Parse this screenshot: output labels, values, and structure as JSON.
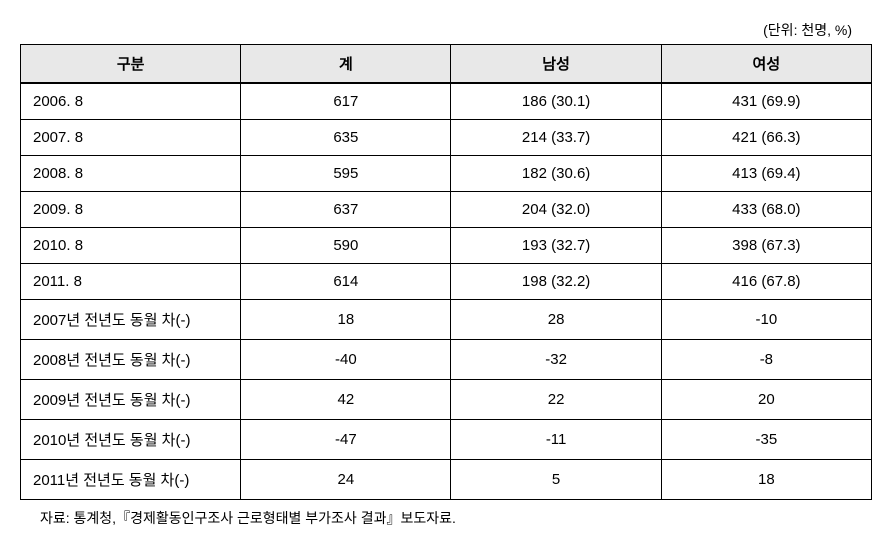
{
  "unit_label": "(단위: 천명, %)",
  "table": {
    "type": "table",
    "columns": [
      "구분",
      "계",
      "남성",
      "여성"
    ],
    "header_bg": "#e8e8e8",
    "border_color": "#000000",
    "background_color": "#ffffff",
    "font_size": 15,
    "header_font_weight": "bold",
    "column_alignment": [
      "left",
      "center",
      "center",
      "center"
    ],
    "section1_rows": [
      {
        "label": "2006. 8",
        "total": "617",
        "male": "186 (30.1)",
        "female": "431 (69.9)"
      },
      {
        "label": "2007. 8",
        "total": "635",
        "male": "214 (33.7)",
        "female": "421 (66.3)"
      },
      {
        "label": "2008. 8",
        "total": "595",
        "male": "182 (30.6)",
        "female": "413 (69.4)"
      },
      {
        "label": "2009. 8",
        "total": "637",
        "male": "204 (32.0)",
        "female": "433 (68.0)"
      },
      {
        "label": "2010. 8",
        "total": "590",
        "male": "193 (32.7)",
        "female": "398 (67.3)"
      },
      {
        "label": "2011. 8",
        "total": "614",
        "male": "198 (32.2)",
        "female": "416 (67.8)"
      }
    ],
    "section2_rows": [
      {
        "label": "2007년 전년도 동월 차(-)",
        "total": "18",
        "male": "28",
        "female": "-10"
      },
      {
        "label": "2008년 전년도 동월 차(-)",
        "total": "-40",
        "male": "-32",
        "female": "-8"
      },
      {
        "label": "2009년 전년도 동월 차(-)",
        "total": "42",
        "male": "22",
        "female": "20"
      },
      {
        "label": "2010년 전년도 동월 차(-)",
        "total": "-47",
        "male": "-11",
        "female": "-35"
      },
      {
        "label": "2011년 전년도 동월 차(-)",
        "total": "24",
        "male": "5",
        "female": "18"
      }
    ]
  },
  "source_note": "자료: 통계청,『경제활동인구조사 근로형태별 부가조사 결과』보도자료."
}
